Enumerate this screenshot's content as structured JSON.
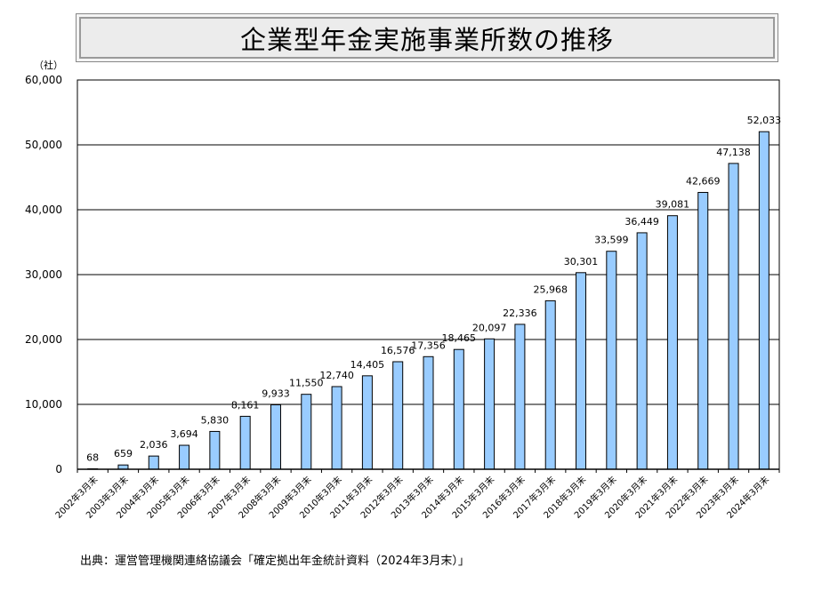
{
  "chart_data": {
    "type": "bar",
    "title": "企業型年金実施事業所数の推移",
    "ylabel": "（社）",
    "xlabel": "",
    "ylim": [
      0,
      60000
    ],
    "yticks": [
      0,
      10000,
      20000,
      30000,
      40000,
      50000,
      60000
    ],
    "ytick_labels": [
      "0",
      "10,000",
      "20,000",
      "30,000",
      "40,000",
      "50,000",
      "60,000"
    ],
    "grid": true,
    "categories": [
      "2002年3月末",
      "2003年3月末",
      "2004年3月末",
      "2005年3月末",
      "2006年3月末",
      "2007年3月末",
      "2008年3月末",
      "2009年3月末",
      "2010年3月末",
      "2011年3月末",
      "2012年3月末",
      "2013年3月末",
      "2014年3月末",
      "2015年3月末",
      "2016年3月末",
      "2017年3月末",
      "2018年3月末",
      "2019年3月末",
      "2020年3月末",
      "2021年3月末",
      "2022年3月末",
      "2023年3月末",
      "2024年3月末"
    ],
    "values": [
      68,
      659,
      2036,
      3694,
      5830,
      8161,
      9933,
      11550,
      12740,
      14405,
      16576,
      17356,
      18465,
      20097,
      22336,
      25968,
      30301,
      33599,
      36449,
      39081,
      42669,
      47138,
      52033
    ],
    "data_labels": [
      "68",
      "659",
      "2,036",
      "3,694",
      "5,830",
      "8,161",
      "9,933",
      "11,550",
      "12,740",
      "14,405",
      "16,576",
      "17,356",
      "18,465",
      "20,097",
      "22,336",
      "25,968",
      "30,301",
      "33,599",
      "36,449",
      "39,081",
      "42,669",
      "47,138",
      "52,033"
    ],
    "bar_color": "#99ccff",
    "source": "出典：運営管理機関連絡協議会「確定拠出年金統計資料（2024年3月末）」"
  }
}
